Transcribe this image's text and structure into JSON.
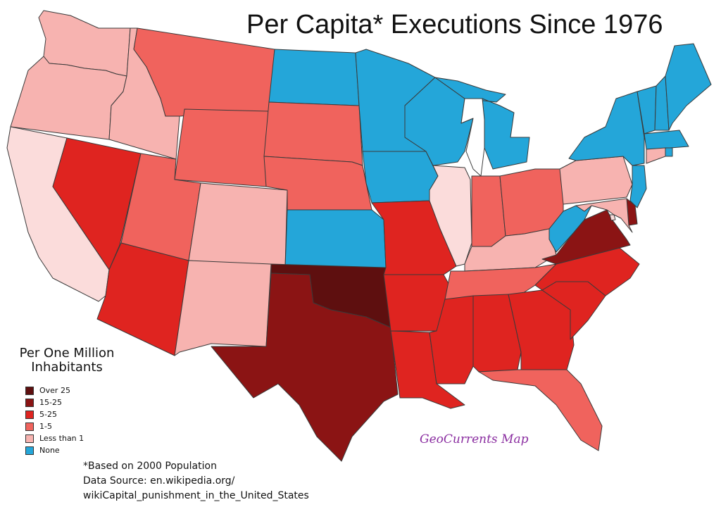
{
  "title": "Per Capita* Executions Since 1976",
  "legend": {
    "title_lines": [
      "Per One Million",
      "Inhabitants"
    ],
    "items": [
      {
        "label": "Over 25",
        "color": "#5e0f0f"
      },
      {
        "label": "15-25",
        "color": "#8b1414"
      },
      {
        "label": "5-25",
        "color": "#df2420"
      },
      {
        "label": "1-5",
        "color": "#f0635d"
      },
      {
        "label": "Less than 1",
        "color": "#f7b3b0"
      },
      {
        "label": "None",
        "color": "#24a6d9"
      }
    ]
  },
  "notes": {
    "population": "*Based on 2000 Population",
    "source_line1": "Data Source: en.wikipedia.org/",
    "source_line2": "wikiCapital_punishment_in_the_United_States"
  },
  "credit": "GeoCurrents Map",
  "colors": {
    "over25": "#5e0f0f",
    "c15_25": "#8b1414",
    "c5_25": "#df2420",
    "c1_5": "#f0635d",
    "lt1": "#f7b3b0",
    "light": "#fbdcdb",
    "none": "#24a6d9",
    "lake": "#ffffff"
  },
  "states": [
    {
      "abbr": "WA",
      "category": "lt1"
    },
    {
      "abbr": "OR",
      "category": "lt1"
    },
    {
      "abbr": "CA",
      "category": "light"
    },
    {
      "abbr": "ID",
      "category": "lt1"
    },
    {
      "abbr": "NV",
      "category": "c5_25"
    },
    {
      "abbr": "MT",
      "category": "c1_5"
    },
    {
      "abbr": "WY",
      "category": "c1_5"
    },
    {
      "abbr": "UT",
      "category": "c1_5"
    },
    {
      "abbr": "AZ",
      "category": "c5_25"
    },
    {
      "abbr": "CO",
      "category": "lt1"
    },
    {
      "abbr": "NM",
      "category": "lt1"
    },
    {
      "abbr": "ND",
      "category": "none"
    },
    {
      "abbr": "SD",
      "category": "c1_5"
    },
    {
      "abbr": "NE",
      "category": "c1_5"
    },
    {
      "abbr": "KS",
      "category": "none"
    },
    {
      "abbr": "OK",
      "category": "over25"
    },
    {
      "abbr": "TX",
      "category": "c15_25"
    },
    {
      "abbr": "MN",
      "category": "none"
    },
    {
      "abbr": "IA",
      "category": "none"
    },
    {
      "abbr": "MO",
      "category": "c5_25"
    },
    {
      "abbr": "AR",
      "category": "c5_25"
    },
    {
      "abbr": "LA",
      "category": "c5_25"
    },
    {
      "abbr": "WI",
      "category": "none"
    },
    {
      "abbr": "MI",
      "category": "none"
    },
    {
      "abbr": "IL",
      "category": "light"
    },
    {
      "abbr": "IN",
      "category": "c1_5"
    },
    {
      "abbr": "OH",
      "category": "c1_5"
    },
    {
      "abbr": "KY",
      "category": "lt1"
    },
    {
      "abbr": "TN",
      "category": "c1_5"
    },
    {
      "abbr": "MS",
      "category": "c5_25"
    },
    {
      "abbr": "AL",
      "category": "c5_25"
    },
    {
      "abbr": "GA",
      "category": "c5_25"
    },
    {
      "abbr": "FL",
      "category": "c1_5"
    },
    {
      "abbr": "SC",
      "category": "c5_25"
    },
    {
      "abbr": "NC",
      "category": "c5_25"
    },
    {
      "abbr": "VA",
      "category": "c15_25"
    },
    {
      "abbr": "WV",
      "category": "none"
    },
    {
      "abbr": "PA",
      "category": "lt1"
    },
    {
      "abbr": "NY",
      "category": "none"
    },
    {
      "abbr": "VT",
      "category": "none"
    },
    {
      "abbr": "NH",
      "category": "none"
    },
    {
      "abbr": "ME",
      "category": "none"
    },
    {
      "abbr": "MA",
      "category": "none"
    },
    {
      "abbr": "RI",
      "category": "none"
    },
    {
      "abbr": "CT",
      "category": "lt1"
    },
    {
      "abbr": "NJ",
      "category": "none"
    },
    {
      "abbr": "DE",
      "category": "c15_25"
    },
    {
      "abbr": "MD",
      "category": "lt1"
    },
    {
      "abbr": "DC",
      "category": "light"
    }
  ]
}
